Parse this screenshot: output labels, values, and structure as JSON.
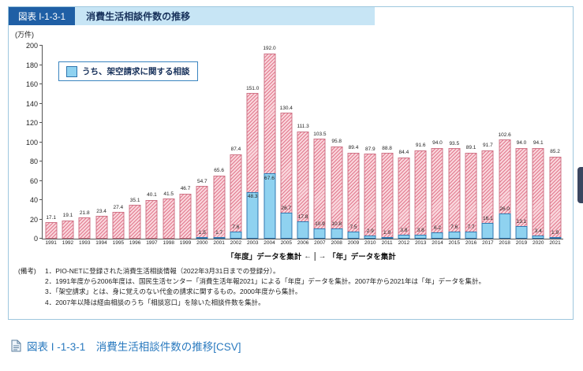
{
  "figure": {
    "label": "図表 I-1-3-1",
    "title": "消費生活相談件数の推移",
    "y_unit": "(万件)",
    "legend": "うち、架空請求に関する相談",
    "axis_note_left": "「年度」データを集計",
    "axis_note_right": "「年」データを集計",
    "arrow_left": "←",
    "arrow_right": "→",
    "notes_label": "(備考)",
    "notes": [
      "1．PIO-NETに登録された消費生活相談情報（2022年3月31日までの登録分）。",
      "2．1991年度から2006年度は、国民生活センター「消費生活年報2021」による「年度」データを集計。2007年から2021年は「年」データを集計。",
      "3．「架空請求」とは、身に覚えのない代金の請求に関するもの。2000年度から集計。",
      "4．2007年以降は経由相談のうち「相談窓口」を除いた相談件数を集計。"
    ]
  },
  "chart_data": {
    "type": "bar",
    "title": "消費生活相談件数の推移",
    "ylabel": "(万件)",
    "ylim": [
      0,
      200
    ],
    "ytick_interval": 20,
    "grid": false,
    "legend_position": "top-left",
    "categories": [
      1991,
      1992,
      1993,
      1994,
      1995,
      1996,
      1997,
      1998,
      1999,
      2000,
      2001,
      2002,
      2003,
      2004,
      2005,
      2006,
      2007,
      2008,
      2009,
      2010,
      2011,
      2012,
      2013,
      2014,
      2015,
      2016,
      2017,
      2018,
      2019,
      2020,
      2021
    ],
    "series": [
      {
        "name": "消費生活相談件数",
        "values": [
          17.1,
          19.1,
          21.8,
          23.4,
          27.4,
          35.1,
          40.1,
          41.5,
          46.7,
          54.7,
          65.6,
          87.4,
          151.0,
          192.0,
          130.4,
          111.3,
          103.5,
          95.8,
          89.4,
          87.9,
          88.8,
          84.4,
          91.6,
          94.0,
          93.5,
          89.1,
          91.7,
          102.6,
          94.0,
          94.1,
          85.2
        ]
      },
      {
        "name": "うち、架空請求に関する相談",
        "values": [
          null,
          null,
          null,
          null,
          null,
          null,
          null,
          null,
          null,
          1.5,
          1.7,
          7.6,
          48.3,
          67.6,
          26.7,
          17.8,
          10.9,
          10.8,
          7.5,
          2.9,
          1.9,
          3.8,
          3.8,
          6.2,
          7.6,
          7.7,
          16.1,
          26.0,
          13.1,
          3.4,
          1.9
        ]
      }
    ],
    "period_boundary": "2006年度と2007年の間で「年度」集計と「年」集計が切り替わる"
  },
  "csv_link": {
    "text": "図表 I -1-3-1　消費生活相談件数の推移[CSV]",
    "icon": "document-icon"
  }
}
